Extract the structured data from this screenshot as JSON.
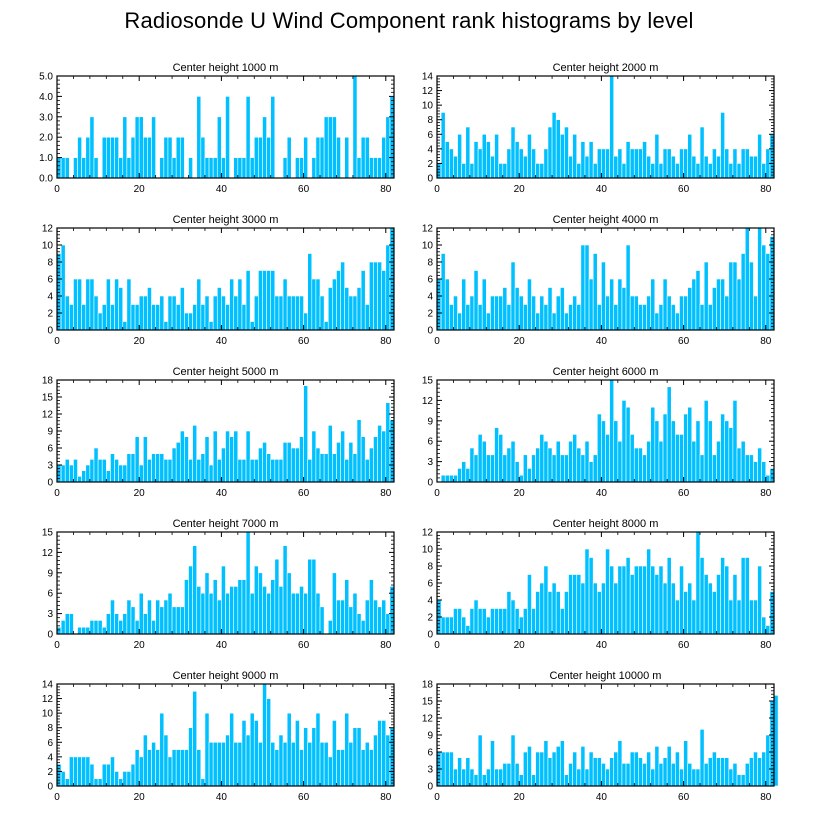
{
  "title": "Radiosonde U Wind Component rank histograms by level",
  "colors": {
    "bar": "#00c0ff",
    "bar_edge": "#ffffff",
    "axis": "#000000"
  },
  "chart_data": [
    {
      "type": "bar",
      "title": "Center height 1000 m",
      "xlabel": "",
      "ylabel": "",
      "xlim": [
        0,
        82
      ],
      "ylim": [
        0,
        5
      ],
      "xticks": [
        0,
        20,
        40,
        60,
        80
      ],
      "yticks": [
        0,
        1,
        2,
        3,
        4,
        5
      ],
      "ytick_labels": [
        "0.0",
        "1.0",
        "2.0",
        "3.0",
        "4.0",
        "5.0"
      ],
      "values": [
        1,
        1,
        1,
        0,
        1,
        2,
        1,
        2,
        3,
        1,
        0,
        2,
        2,
        2,
        2,
        1,
        3,
        1,
        2,
        3,
        3,
        2,
        2,
        3,
        0,
        1,
        2,
        2,
        1,
        2,
        2,
        0,
        1,
        0,
        4,
        2,
        1,
        1,
        1,
        3,
        1,
        4,
        0,
        1,
        1,
        1,
        4,
        1,
        2,
        2,
        3,
        2,
        4,
        0,
        0,
        1,
        2,
        0,
        1,
        1,
        2,
        0,
        1,
        2,
        2,
        3,
        3,
        3,
        2,
        0,
        2,
        0,
        5,
        1,
        2,
        2,
        1,
        1,
        1,
        2,
        3,
        4
      ]
    },
    {
      "type": "bar",
      "title": "Center height 2000 m",
      "xlabel": "",
      "ylabel": "",
      "xlim": [
        0,
        82
      ],
      "ylim": [
        0,
        14
      ],
      "xticks": [
        0,
        20,
        40,
        60,
        80
      ],
      "yticks": [
        0,
        2,
        4,
        6,
        8,
        10,
        12,
        14
      ],
      "ytick_labels": [
        "0",
        "2",
        "4",
        "6",
        "8",
        "10",
        "12",
        "14"
      ],
      "values": [
        2,
        9,
        5,
        4,
        3,
        6,
        2,
        7,
        2,
        5,
        4,
        6,
        5,
        3,
        6,
        2,
        2,
        4,
        7,
        5,
        4,
        3,
        6,
        4,
        2,
        2,
        4,
        7,
        9,
        8,
        6,
        7,
        3,
        6,
        2,
        5,
        3,
        5,
        2,
        4,
        4,
        4,
        14,
        3,
        4,
        2,
        5,
        4,
        4,
        4,
        5,
        3,
        2,
        6,
        2,
        4,
        4,
        3,
        2,
        4,
        4,
        6,
        3,
        2,
        7,
        3,
        2,
        4,
        3,
        9,
        4,
        2,
        4,
        2,
        4,
        4,
        3,
        3,
        6,
        2,
        4,
        6
      ]
    },
    {
      "type": "bar",
      "title": "Center height 3000 m",
      "xlabel": "",
      "ylabel": "",
      "xlim": [
        0,
        82
      ],
      "ylim": [
        0,
        12
      ],
      "xticks": [
        0,
        20,
        40,
        60,
        80
      ],
      "yticks": [
        0,
        2,
        4,
        6,
        8,
        10,
        12
      ],
      "ytick_labels": [
        "0",
        "2",
        "4",
        "6",
        "8",
        "10",
        "12"
      ],
      "values": [
        9,
        10,
        4,
        3,
        6,
        6,
        3,
        6,
        6,
        4,
        2,
        3,
        6,
        3,
        6,
        5,
        1,
        6,
        3,
        3,
        4,
        4,
        5,
        3,
        3,
        4,
        1,
        4,
        4,
        3,
        5,
        2,
        2,
        3,
        6,
        3,
        4,
        1,
        4,
        5,
        4,
        3,
        6,
        4,
        6,
        3,
        7,
        1,
        4,
        7,
        7,
        7,
        7,
        4,
        4,
        6,
        4,
        4,
        4,
        4,
        2,
        9,
        6,
        6,
        4,
        1,
        5,
        6,
        7,
        8,
        5,
        4,
        4,
        5,
        7,
        3,
        8,
        8,
        8,
        7,
        10,
        12
      ]
    },
    {
      "type": "bar",
      "title": "Center height 4000 m",
      "xlabel": "",
      "ylabel": "",
      "xlim": [
        0,
        82
      ],
      "ylim": [
        0,
        12
      ],
      "xticks": [
        0,
        20,
        40,
        60,
        80
      ],
      "yticks": [
        0,
        2,
        4,
        6,
        8,
        10,
        12
      ],
      "ytick_labels": [
        "0",
        "2",
        "4",
        "6",
        "8",
        "10",
        "12"
      ],
      "values": [
        6,
        9,
        6,
        3,
        4,
        2,
        6,
        3,
        4,
        7,
        3,
        6,
        2,
        4,
        4,
        4,
        5,
        3,
        8,
        5,
        4,
        3,
        6,
        4,
        2,
        4,
        3,
        5,
        2,
        4,
        5,
        2,
        3,
        4,
        3,
        10,
        10,
        6,
        9,
        3,
        8,
        4,
        6,
        3,
        6,
        5,
        10,
        4,
        4,
        3,
        3,
        4,
        6,
        2,
        3,
        6,
        4,
        3,
        2,
        4,
        4,
        5,
        6,
        7,
        3,
        8,
        3,
        5,
        6,
        6,
        4,
        8,
        8,
        6,
        9,
        12,
        8,
        4,
        12,
        10,
        9,
        11
      ]
    },
    {
      "type": "bar",
      "title": "Center height 5000 m",
      "xlabel": "",
      "ylabel": "",
      "xlim": [
        0,
        82
      ],
      "ylim": [
        0,
        18
      ],
      "xticks": [
        0,
        20,
        40,
        60,
        80
      ],
      "yticks": [
        0,
        3,
        6,
        9,
        12,
        15,
        18
      ],
      "ytick_labels": [
        "0",
        "3",
        "6",
        "9",
        "12",
        "15",
        "18"
      ],
      "values": [
        3,
        3,
        4,
        3,
        4,
        1,
        2,
        3,
        4,
        6,
        4,
        4,
        2,
        5,
        4,
        3,
        3,
        5,
        5,
        8,
        3,
        8,
        4,
        5,
        5,
        5,
        4,
        4,
        6,
        7,
        9,
        8,
        4,
        10,
        4,
        5,
        8,
        3,
        9,
        4,
        6,
        9,
        8,
        9,
        4,
        4,
        9,
        4,
        4,
        6,
        7,
        5,
        4,
        4,
        4,
        7,
        7,
        6,
        6,
        8,
        17,
        4,
        9,
        6,
        5,
        5,
        10,
        5,
        7,
        9,
        4,
        7,
        5,
        11,
        8,
        4,
        6,
        8,
        10,
        9,
        14,
        11
      ]
    },
    {
      "type": "bar",
      "title": "Center height 6000 m",
      "xlabel": "",
      "ylabel": "",
      "xlim": [
        0,
        82
      ],
      "ylim": [
        0,
        15
      ],
      "xticks": [
        0,
        20,
        40,
        60,
        80
      ],
      "yticks": [
        0,
        3,
        6,
        9,
        12,
        15
      ],
      "ytick_labels": [
        "0",
        "3",
        "6",
        "9",
        "12",
        "15"
      ],
      "values": [
        0,
        1,
        1,
        1,
        1,
        2,
        3,
        2,
        5,
        4,
        7,
        6,
        4,
        4,
        8,
        7,
        4,
        5,
        6,
        3,
        1,
        4,
        2,
        4,
        5,
        7,
        6,
        5,
        4,
        6,
        4,
        4,
        6,
        7,
        5,
        4,
        6,
        3,
        4,
        10,
        9,
        7,
        15,
        9,
        6,
        12,
        11,
        7,
        5,
        5,
        4,
        6,
        11,
        9,
        6,
        10,
        14,
        9,
        7,
        7,
        10,
        11,
        6,
        9,
        4,
        12,
        9,
        4,
        6,
        10,
        9,
        8,
        12,
        5,
        6,
        4,
        4,
        3,
        5,
        3,
        1,
        2
      ]
    },
    {
      "type": "bar",
      "title": "Center height 7000 m",
      "xlabel": "",
      "ylabel": "",
      "xlim": [
        0,
        82
      ],
      "ylim": [
        0,
        15
      ],
      "xticks": [
        0,
        20,
        40,
        60,
        80
      ],
      "yticks": [
        0,
        3,
        6,
        9,
        12,
        15
      ],
      "ytick_labels": [
        "0",
        "3",
        "6",
        "9",
        "12",
        "15"
      ],
      "values": [
        1,
        2,
        3,
        3,
        0,
        1,
        1,
        1,
        2,
        2,
        2,
        1,
        3,
        5,
        3,
        2,
        3,
        5,
        4,
        2,
        6,
        3,
        5,
        2,
        5,
        4,
        5,
        6,
        4,
        4,
        4,
        8,
        10,
        13,
        7,
        6,
        9,
        6,
        8,
        5,
        10,
        6,
        7,
        7,
        8,
        8,
        15,
        6,
        10,
        9,
        7,
        6,
        8,
        11,
        7,
        13,
        9,
        6,
        6,
        7,
        6,
        11,
        11,
        6,
        4,
        0,
        2,
        9,
        5,
        5,
        8,
        4,
        6,
        3,
        2,
        5,
        8,
        5,
        4,
        5,
        3,
        7
      ]
    },
    {
      "type": "bar",
      "title": "Center height 8000 m",
      "xlabel": "",
      "ylabel": "",
      "xlim": [
        0,
        82
      ],
      "ylim": [
        0,
        12
      ],
      "xticks": [
        0,
        20,
        40,
        60,
        80
      ],
      "yticks": [
        0,
        2,
        4,
        6,
        8,
        10,
        12
      ],
      "ytick_labels": [
        "0",
        "2",
        "4",
        "6",
        "8",
        "10",
        "12"
      ],
      "values": [
        4,
        2,
        2,
        2,
        3,
        3,
        2,
        1,
        3,
        4,
        3,
        3,
        2,
        3,
        3,
        3,
        3,
        5,
        4,
        3,
        2,
        3,
        7,
        3,
        5,
        6,
        8,
        5,
        6,
        5,
        3,
        5,
        7,
        7,
        7,
        6,
        10,
        9,
        6,
        5,
        6,
        10,
        8,
        6,
        8,
        8,
        9,
        7,
        8,
        8,
        8,
        10,
        8,
        7,
        8,
        6,
        9,
        6,
        4,
        8,
        5,
        6,
        4,
        12,
        9,
        7,
        6,
        5,
        7,
        9,
        8,
        4,
        7,
        4,
        9,
        9,
        4,
        4,
        8,
        2,
        1,
        5
      ]
    },
    {
      "type": "bar",
      "title": "Center height 9000 m",
      "xlabel": "",
      "ylabel": "",
      "xlim": [
        0,
        82
      ],
      "ylim": [
        0,
        14
      ],
      "xticks": [
        0,
        20,
        40,
        60,
        80
      ],
      "yticks": [
        0,
        2,
        4,
        6,
        8,
        10,
        12,
        14
      ],
      "ytick_labels": [
        "0",
        "2",
        "4",
        "6",
        "8",
        "10",
        "12",
        "14"
      ],
      "values": [
        3,
        2,
        1,
        4,
        4,
        4,
        4,
        4,
        3,
        1,
        1,
        3,
        3,
        4,
        2,
        1,
        2,
        2,
        3,
        5,
        4,
        7,
        5,
        6,
        5,
        10,
        7,
        4,
        5,
        5,
        5,
        5,
        8,
        13,
        5,
        1,
        10,
        6,
        6,
        6,
        6,
        7,
        10,
        6,
        6,
        9,
        7,
        10,
        9,
        6,
        14,
        12,
        6,
        5,
        7,
        6,
        10,
        6,
        9,
        5,
        8,
        6,
        8,
        10,
        6,
        6,
        4,
        9,
        5,
        5,
        10,
        6,
        8,
        8,
        5,
        6,
        5,
        7,
        9,
        9,
        7,
        8
      ]
    },
    {
      "type": "bar",
      "title": "Center height 10000 m",
      "xlabel": "",
      "ylabel": "",
      "xlim": [
        0,
        82
      ],
      "ylim": [
        0,
        18
      ],
      "xticks": [
        0,
        20,
        40,
        60,
        80
      ],
      "yticks": [
        0,
        3,
        6,
        9,
        12,
        15,
        18
      ],
      "ytick_labels": [
        "0",
        "3",
        "6",
        "9",
        "12",
        "15",
        "18"
      ],
      "values": [
        6,
        6,
        6,
        6,
        3,
        5,
        3,
        5,
        3,
        2,
        9,
        2,
        3,
        8,
        3,
        3,
        4,
        4,
        9,
        4,
        2,
        6,
        7,
        2,
        6,
        6,
        8,
        5,
        6,
        7,
        8,
        2,
        4,
        6,
        3,
        7,
        3,
        6,
        5,
        5,
        4,
        3,
        5,
        6,
        8,
        4,
        4,
        6,
        6,
        5,
        4,
        6,
        3,
        7,
        4,
        5,
        7,
        4,
        6,
        3,
        8,
        4,
        3,
        3,
        10,
        4,
        5,
        6,
        5,
        5,
        5,
        3,
        4,
        2,
        2,
        4,
        5,
        6,
        5,
        6,
        9,
        15,
        16
      ]
    }
  ]
}
